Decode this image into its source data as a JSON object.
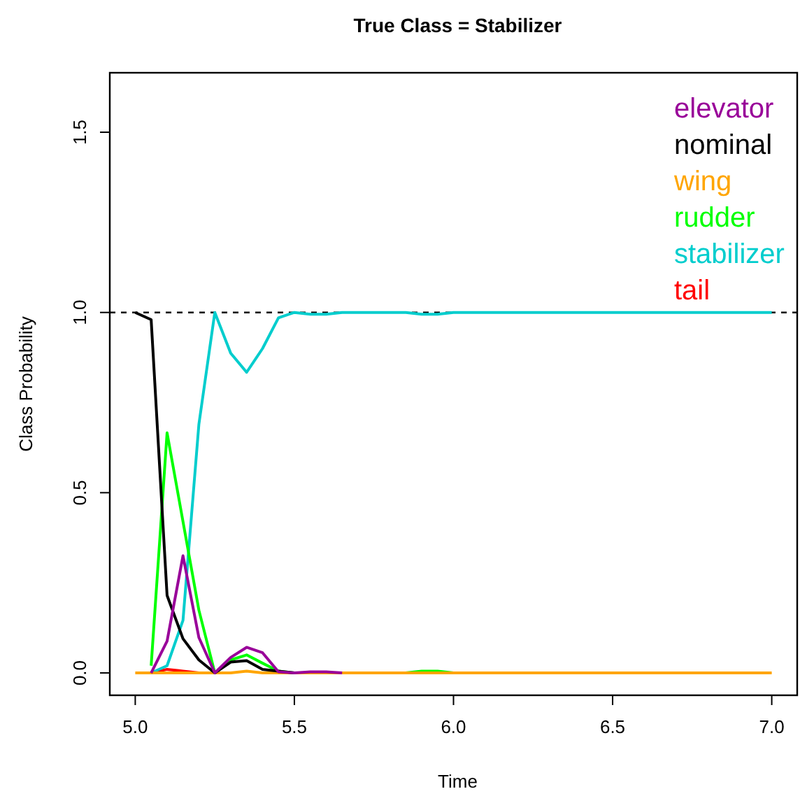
{
  "chart_data": {
    "type": "line",
    "title": "True Class = Stabilizer",
    "xlabel": "Time",
    "ylabel": "Class Probability",
    "x": [
      5,
      5.05,
      5.1,
      5.15,
      5.2,
      5.25,
      5.3,
      5.35,
      5.4,
      5.45,
      5.5,
      5.55,
      5.6,
      5.65,
      5.7,
      5.75,
      5.8,
      5.85,
      5.9,
      5.95,
      6,
      6.05,
      6.1,
      6.15,
      6.2,
      6.25,
      6.3,
      6.35,
      6.4,
      6.45,
      6.5,
      6.55,
      6.6,
      6.65,
      6.7,
      6.75,
      6.8,
      6.85,
      6.9,
      6.95,
      7
    ],
    "series": [
      {
        "name": "elevator",
        "color": "#990099",
        "values": [
          null,
          0,
          0.088,
          0.325,
          0.098,
          0,
          0.043,
          0.071,
          0.056,
          0.003,
          0,
          0.003,
          0.003,
          0,
          null,
          null,
          null,
          null,
          null,
          null,
          null,
          null,
          null,
          null,
          null,
          null,
          null,
          null,
          null,
          null,
          null,
          null,
          null,
          null,
          null,
          null,
          null,
          null,
          null,
          null,
          null
        ]
      },
      {
        "name": "nominal",
        "color": "#000000",
        "values": [
          1,
          0.98,
          0.215,
          0.095,
          0.036,
          0,
          0.03,
          0.034,
          0.01,
          0.005,
          0,
          null,
          null,
          null,
          null,
          null,
          null,
          null,
          null,
          null,
          null,
          null,
          null,
          null,
          null,
          null,
          null,
          null,
          null,
          null,
          null,
          null,
          null,
          null,
          null,
          null,
          null,
          null,
          null,
          null,
          null
        ]
      },
      {
        "name": "wing",
        "color": "#ffa500",
        "values": [
          0,
          0,
          0,
          0,
          0,
          0,
          0,
          0.005,
          0,
          0,
          0,
          0,
          0,
          0,
          0,
          0,
          0,
          0,
          0,
          0,
          0,
          0,
          0,
          0,
          0,
          0,
          0,
          0,
          0,
          0,
          0,
          0,
          0,
          0,
          0,
          0,
          0,
          0,
          0,
          0,
          0
        ]
      },
      {
        "name": "rudder",
        "color": "#00ff00",
        "values": [
          null,
          0.02,
          0.666,
          0.42,
          0.174,
          0,
          0.036,
          0.05,
          0.027,
          0.005,
          0,
          null,
          null,
          null,
          null,
          null,
          null,
          0,
          0.005,
          0.005,
          0,
          null,
          null,
          null,
          null,
          null,
          null,
          null,
          null,
          null,
          null,
          null,
          null,
          null,
          null,
          null,
          null,
          null,
          null,
          null,
          null
        ]
      },
      {
        "name": "stabilizer",
        "color": "#00cdcd",
        "values": [
          null,
          0,
          0.02,
          0.146,
          0.69,
          1,
          0.887,
          0.834,
          0.9,
          0.985,
          1,
          0.995,
          0.995,
          1,
          1,
          1,
          1,
          1,
          0.995,
          0.995,
          1,
          1,
          1,
          1,
          1,
          1,
          1,
          1,
          1,
          1,
          1,
          1,
          1,
          1,
          1,
          1,
          1,
          1,
          1,
          1,
          1
        ]
      },
      {
        "name": "tail",
        "color": "#ff0000",
        "values": [
          null,
          0,
          0.01,
          0.005,
          0,
          null,
          null,
          null,
          null,
          null,
          null,
          null,
          null,
          null,
          null,
          null,
          null,
          null,
          null,
          null,
          null,
          null,
          null,
          null,
          null,
          null,
          null,
          null,
          null,
          null,
          null,
          null,
          null,
          null,
          null,
          null,
          null,
          null,
          null,
          null,
          null
        ]
      }
    ],
    "xlim": [
      4.92,
      7.08
    ],
    "ylim": [
      -0.062,
      1.665
    ],
    "xticks": [
      {
        "value": 5,
        "label": "5.0"
      },
      {
        "value": 5.5,
        "label": "5.5"
      },
      {
        "value": 6,
        "label": "6.0"
      },
      {
        "value": 6.5,
        "label": "6.5"
      },
      {
        "value": 7,
        "label": "7.0"
      }
    ],
    "yticks": [
      {
        "value": 0,
        "label": "0.0"
      },
      {
        "value": 0.5,
        "label": "0.5"
      },
      {
        "value": 1,
        "label": "1.0"
      },
      {
        "value": 1.5,
        "label": "1.5"
      }
    ],
    "ref_lines": [
      {
        "axis": "y",
        "value": 1,
        "color": "#000000",
        "line_style": "dashed"
      }
    ],
    "legend": "top right",
    "grid": false,
    "marker": "none",
    "line_style": "solid"
  }
}
